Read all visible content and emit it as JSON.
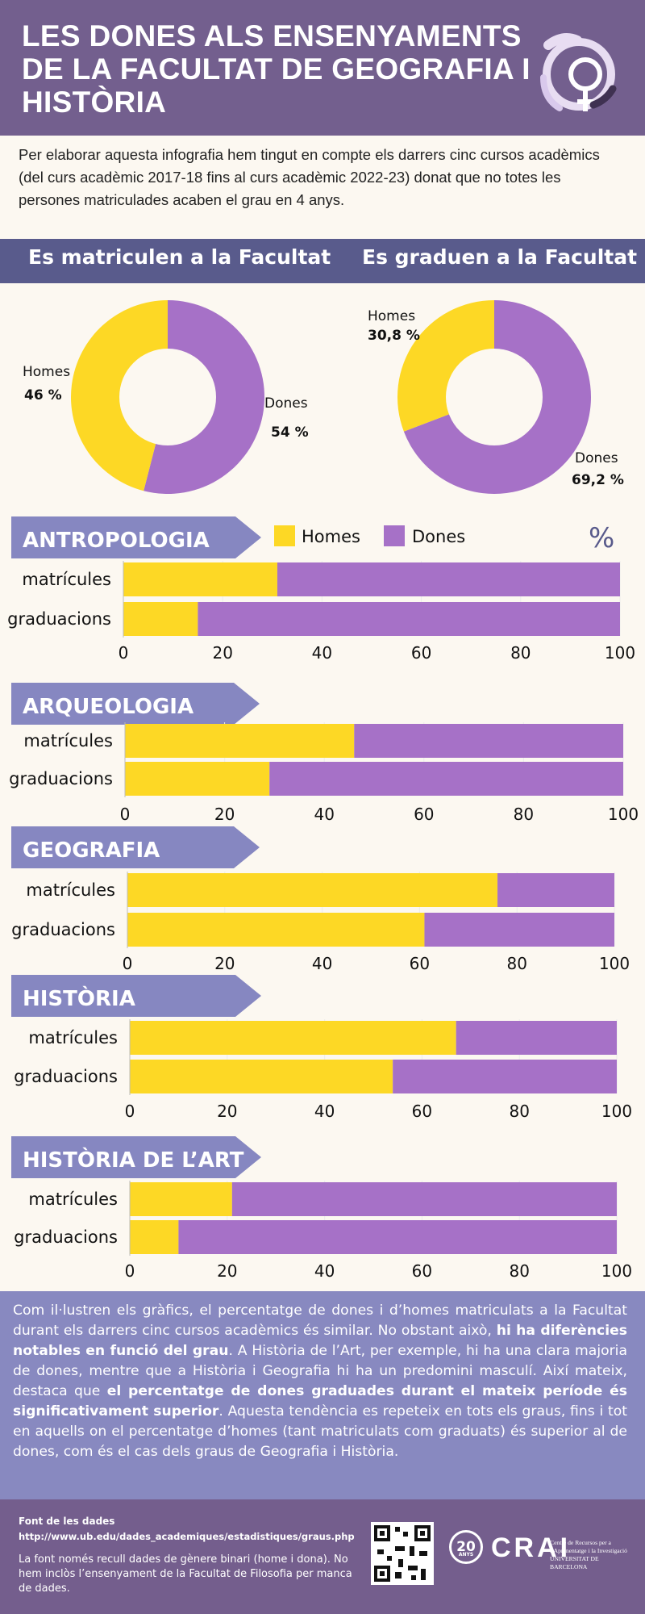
{
  "header": {
    "title": "LES DONES ALS ENSENYAMENTS DE LA FACULTAT DE GEOGRAFIA I HISTÒRIA",
    "logo": "female-symbols-circle-icon"
  },
  "intro": "Per elaborar aquesta infografia hem tingut en compte els darrers cinc cursos acadèmics (del curs acadèmic 2017-18 fins al curs acadèmic 2022-23) donat que no totes les persones matriculades acaben el grau en 4 anys.",
  "colors": {
    "homes": "#fdd825",
    "dones": "#a671c7",
    "header": "#735f8e",
    "band": "#595b8c",
    "arrow": "#8687c1",
    "summary": "#8889c0"
  },
  "donut_charts": [
    {
      "title": "Es matriculen a la Facultat",
      "labels": {
        "homes": "Homes",
        "dones": "Dones"
      },
      "homes": 46,
      "dones": 54,
      "homes_label": "46 %",
      "dones_label": "54 %"
    },
    {
      "title": "Es graduen a la Facultat",
      "labels": {
        "homes": "Homes",
        "dones": "Dones"
      },
      "homes": 30.8,
      "dones": 69.2,
      "homes_label": "30,8 %",
      "dones_label": "69,2 %"
    }
  ],
  "legend": {
    "homes": "Homes",
    "dones": "Dones",
    "unit": "%"
  },
  "chart_data": [
    {
      "type": "bar",
      "title": "ANTROPOLOGIA",
      "categories": [
        "matrícules",
        "graduacions"
      ],
      "series": [
        {
          "name": "Homes",
          "values": [
            31,
            15
          ]
        },
        {
          "name": "Dones",
          "values": [
            69,
            85
          ]
        }
      ],
      "xlim": [
        0,
        100
      ],
      "ticks": [
        0,
        20,
        40,
        60,
        80,
        100
      ]
    },
    {
      "type": "bar",
      "title": "ARQUEOLOGIA",
      "categories": [
        "matrícules",
        "graduacions"
      ],
      "series": [
        {
          "name": "Homes",
          "values": [
            46,
            29
          ]
        },
        {
          "name": "Dones",
          "values": [
            54,
            71
          ]
        }
      ],
      "xlim": [
        0,
        100
      ],
      "ticks": [
        0,
        20,
        40,
        60,
        80,
        100
      ]
    },
    {
      "type": "bar",
      "title": "GEOGRAFIA",
      "categories": [
        "matrícules",
        "graduacions"
      ],
      "series": [
        {
          "name": "Homes",
          "values": [
            76,
            61
          ]
        },
        {
          "name": "Dones",
          "values": [
            24,
            39
          ]
        }
      ],
      "xlim": [
        0,
        100
      ],
      "ticks": [
        0,
        20,
        40,
        60,
        80,
        100
      ]
    },
    {
      "type": "bar",
      "title": "HISTÒRIA",
      "categories": [
        "matrícules",
        "graduacions"
      ],
      "series": [
        {
          "name": "Homes",
          "values": [
            67,
            54
          ]
        },
        {
          "name": "Dones",
          "values": [
            33,
            46
          ]
        }
      ],
      "xlim": [
        0,
        100
      ],
      "ticks": [
        0,
        20,
        40,
        60,
        80,
        100
      ]
    },
    {
      "type": "bar",
      "title": "HISTÒRIA DE L’ART",
      "categories": [
        "matrícules",
        "graduacions"
      ],
      "series": [
        {
          "name": "Homes",
          "values": [
            21,
            10
          ]
        },
        {
          "name": "Dones",
          "values": [
            79,
            90
          ]
        }
      ],
      "xlim": [
        0,
        100
      ],
      "ticks": [
        0,
        20,
        40,
        60,
        80,
        100
      ]
    }
  ],
  "summary": {
    "p1": "Com il·lustren els gràfics, el percentatge de dones i d’homes matriculats a la Facultat durant els darrers cinc cursos acadèmics és similar. No obstant això, ",
    "b1": "hi ha diferències notables en funció del grau",
    "p2": ". A Història de l’Art, per exemple, hi ha una clara majoria de dones, mentre que a Història i Geografia hi ha un predomini masculí. Així mateix, destaca que ",
    "b2": "el percentatge de dones graduades durant el mateix període és significativament superior",
    "p3": ". Aquesta tendència es repeteix en tots els graus, fins i tot en aquells on el percentatge d’homes (tant matriculats com graduats) és superior al de dones, com és el cas dels graus de Geografia i Història."
  },
  "footer": {
    "source_title": "Font de les dades",
    "source_url": "http://www.ub.edu/dades_academiques/estadistiques/graus.php",
    "note": "La font només recull dades de gènere binari (home i dona). No hem inclòs l’ensenyament de la Facultat de Filosofia per manca de dades.",
    "years": "20",
    "years_sub": "ANYS",
    "crai": "CRAI",
    "crai_sub1": "Centre de Recursos per a",
    "crai_sub2": "l’Aprenentatge i la Investigació",
    "crai_sub3": "UNIVERSITAT DE BARCELONA"
  }
}
